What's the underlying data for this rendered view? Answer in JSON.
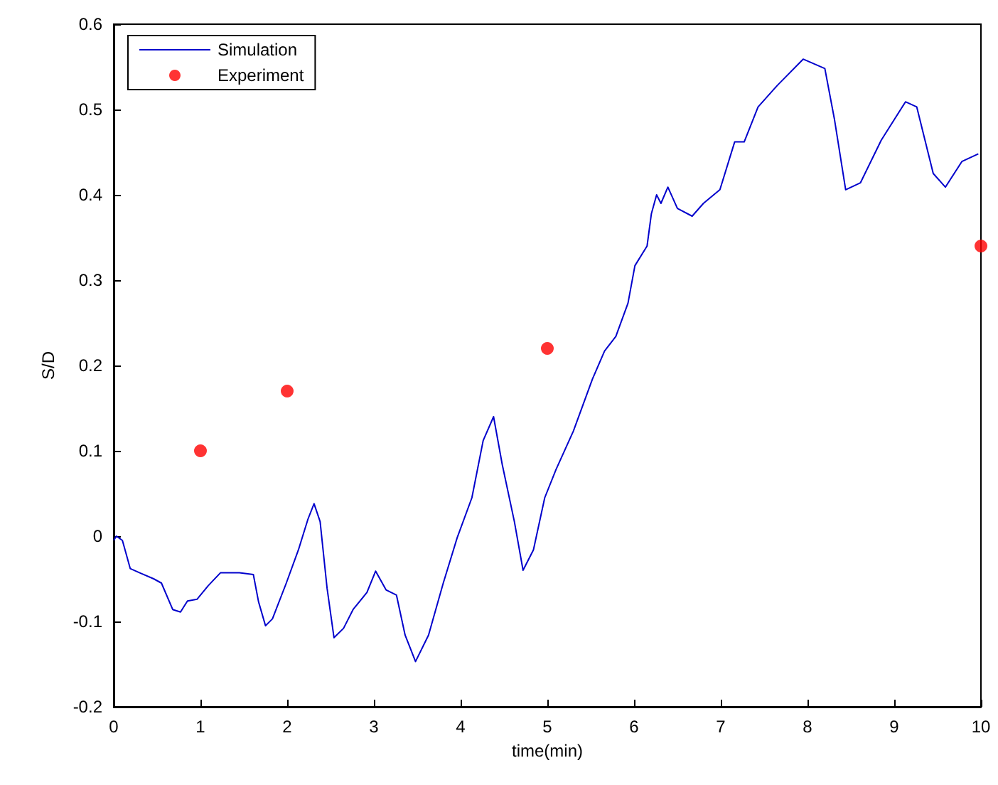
{
  "chart_data": {
    "type": "line",
    "xlabel": "time(min)",
    "ylabel": "S/D",
    "xlim": [
      0,
      10
    ],
    "xticks": [
      0,
      1,
      2,
      3,
      4,
      5,
      6,
      7,
      8,
      9,
      10
    ],
    "ylim": [
      -0.2,
      0.6
    ],
    "yticks": [
      -0.2,
      -0.1,
      0,
      0.1,
      0.2,
      0.3,
      0.4,
      0.5,
      0.6
    ],
    "grid": false,
    "legend": "top left",
    "series": [
      {
        "name": "Simulation",
        "color": "#0000cc",
        "marker": "none",
        "line_style": "solid",
        "x": [
          0,
          0.03,
          0.1,
          0.19,
          0.3,
          0.46,
          0.55,
          0.68,
          0.77,
          0.85,
          0.96,
          1.09,
          1.23,
          1.45,
          1.61,
          1.67,
          1.75,
          1.83,
          1.99,
          2.13,
          2.24,
          2.31,
          2.38,
          2.46,
          2.54,
          2.65,
          2.76,
          2.92,
          3.02,
          3.14,
          3.26,
          3.36,
          3.48,
          3.63,
          3.8,
          3.96,
          4.13,
          4.26,
          4.38,
          4.48,
          4.62,
          4.72,
          4.84,
          4.97,
          5.1,
          5.3,
          5.52,
          5.66,
          5.79,
          5.93,
          6.01,
          6.15,
          6.2,
          6.26,
          6.31,
          6.39,
          6.5,
          6.67,
          6.8,
          6.99,
          7.16,
          7.27,
          7.43,
          7.65,
          7.95,
          8.2,
          8.31,
          8.44,
          8.61,
          8.85,
          9.13,
          9.26,
          9.45,
          9.59,
          9.78,
          9.97
        ],
        "values": [
          -0.005,
          0,
          -0.005,
          -0.038,
          -0.043,
          -0.05,
          -0.055,
          -0.086,
          -0.089,
          -0.076,
          -0.074,
          -0.058,
          -0.043,
          -0.043,
          -0.045,
          -0.077,
          -0.105,
          -0.097,
          -0.055,
          -0.016,
          0.02,
          0.038,
          0.017,
          -0.061,
          -0.119,
          -0.108,
          -0.086,
          -0.066,
          -0.041,
          -0.063,
          -0.069,
          -0.116,
          -0.147,
          -0.116,
          -0.055,
          -0.002,
          0.045,
          0.112,
          0.14,
          0.084,
          0.017,
          -0.04,
          -0.016,
          0.045,
          0.078,
          0.123,
          0.184,
          0.217,
          0.234,
          0.273,
          0.317,
          0.34,
          0.378,
          0.4,
          0.39,
          0.409,
          0.384,
          0.375,
          0.39,
          0.406,
          0.462,
          0.462,
          0.503,
          0.528,
          0.559,
          0.548,
          0.489,
          0.406,
          0.414,
          0.464,
          0.509,
          0.503,
          0.425,
          0.409,
          0.439,
          0.448
        ]
      },
      {
        "name": "Experiment",
        "type": "scatter",
        "color": "#ff0000",
        "marker": "circle",
        "x": [
          1,
          2,
          5,
          10
        ],
        "values": [
          0.1,
          0.17,
          0.22,
          0.34
        ]
      }
    ]
  }
}
